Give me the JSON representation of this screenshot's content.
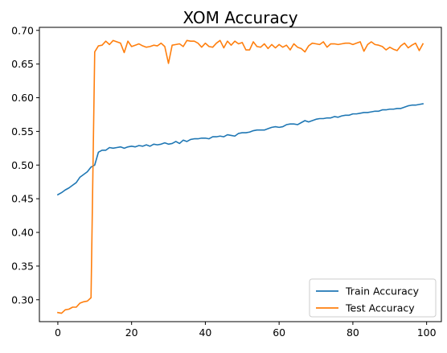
{
  "chart_data": {
    "type": "line",
    "title": "XOM Accuracy",
    "xlabel": "",
    "ylabel": "",
    "xlim": [
      -5,
      104
    ],
    "ylim": [
      0.2675,
      0.7045
    ],
    "xticks": [
      0,
      20,
      40,
      60,
      80,
      100
    ],
    "xtick_labels": [
      "0",
      "20",
      "40",
      "60",
      "80",
      "100"
    ],
    "yticks": [
      0.3,
      0.35,
      0.4,
      0.45,
      0.5,
      0.55,
      0.6,
      0.65,
      0.7
    ],
    "ytick_labels": [
      "0.30",
      "0.35",
      "0.40",
      "0.45",
      "0.50",
      "0.55",
      "0.60",
      "0.65",
      "0.70"
    ],
    "grid": false,
    "legend_position": "lower-right",
    "series": [
      {
        "name": "Train Accuracy",
        "color": "#1f77b4",
        "x": [
          0,
          1,
          2,
          3,
          4,
          5,
          6,
          7,
          8,
          9,
          10,
          11,
          12,
          13,
          14,
          15,
          16,
          17,
          18,
          19,
          20,
          21,
          22,
          23,
          24,
          25,
          26,
          27,
          28,
          29,
          30,
          31,
          32,
          33,
          34,
          35,
          36,
          37,
          38,
          39,
          40,
          41,
          42,
          43,
          44,
          45,
          46,
          47,
          48,
          49,
          50,
          51,
          52,
          53,
          54,
          55,
          56,
          57,
          58,
          59,
          60,
          61,
          62,
          63,
          64,
          65,
          66,
          67,
          68,
          69,
          70,
          71,
          72,
          73,
          74,
          75,
          76,
          77,
          78,
          79,
          80,
          81,
          82,
          83,
          84,
          85,
          86,
          87,
          88,
          89,
          90,
          91,
          92,
          93,
          94,
          95,
          96,
          97,
          98,
          99
        ],
        "values": [
          0.456,
          0.459,
          0.463,
          0.466,
          0.47,
          0.474,
          0.482,
          0.486,
          0.49,
          0.497,
          0.5,
          0.519,
          0.522,
          0.522,
          0.526,
          0.525,
          0.526,
          0.527,
          0.525,
          0.527,
          0.528,
          0.527,
          0.529,
          0.528,
          0.53,
          0.528,
          0.531,
          0.53,
          0.531,
          0.533,
          0.531,
          0.532,
          0.535,
          0.532,
          0.537,
          0.535,
          0.538,
          0.539,
          0.539,
          0.54,
          0.54,
          0.539,
          0.542,
          0.542,
          0.543,
          0.542,
          0.545,
          0.544,
          0.543,
          0.547,
          0.548,
          0.548,
          0.549,
          0.551,
          0.552,
          0.552,
          0.552,
          0.554,
          0.556,
          0.557,
          0.556,
          0.557,
          0.56,
          0.561,
          0.561,
          0.56,
          0.563,
          0.566,
          0.564,
          0.566,
          0.568,
          0.569,
          0.569,
          0.57,
          0.57,
          0.572,
          0.571,
          0.573,
          0.574,
          0.574,
          0.576,
          0.576,
          0.577,
          0.578,
          0.578,
          0.579,
          0.58,
          0.58,
          0.582,
          0.582,
          0.583,
          0.583,
          0.584,
          0.584,
          0.586,
          0.588,
          0.589,
          0.589,
          0.59,
          0.591
        ]
      },
      {
        "name": "Test Accuracy",
        "color": "#ff7f0e",
        "x": [
          0,
          1,
          2,
          3,
          4,
          5,
          6,
          7,
          8,
          9,
          10,
          11,
          12,
          13,
          14,
          15,
          16,
          17,
          18,
          19,
          20,
          21,
          22,
          23,
          24,
          25,
          26,
          27,
          28,
          29,
          30,
          31,
          32,
          33,
          34,
          35,
          36,
          37,
          38,
          39,
          40,
          41,
          42,
          43,
          44,
          45,
          46,
          47,
          48,
          49,
          50,
          51,
          52,
          53,
          54,
          55,
          56,
          57,
          58,
          59,
          60,
          61,
          62,
          63,
          64,
          65,
          66,
          67,
          68,
          69,
          70,
          71,
          72,
          73,
          74,
          75,
          76,
          77,
          78,
          79,
          80,
          81,
          82,
          83,
          84,
          85,
          86,
          87,
          88,
          89,
          90,
          91,
          92,
          93,
          94,
          95,
          96,
          97,
          98,
          99
        ],
        "values": [
          0.281,
          0.28,
          0.285,
          0.286,
          0.289,
          0.289,
          0.295,
          0.297,
          0.298,
          0.303,
          0.668,
          0.677,
          0.678,
          0.684,
          0.679,
          0.685,
          0.683,
          0.681,
          0.667,
          0.684,
          0.676,
          0.678,
          0.68,
          0.677,
          0.675,
          0.676,
          0.678,
          0.677,
          0.681,
          0.676,
          0.651,
          0.678,
          0.679,
          0.68,
          0.676,
          0.685,
          0.684,
          0.684,
          0.681,
          0.675,
          0.681,
          0.676,
          0.675,
          0.681,
          0.685,
          0.674,
          0.684,
          0.678,
          0.684,
          0.68,
          0.682,
          0.671,
          0.671,
          0.683,
          0.676,
          0.675,
          0.68,
          0.673,
          0.679,
          0.674,
          0.679,
          0.675,
          0.678,
          0.671,
          0.68,
          0.675,
          0.673,
          0.668,
          0.677,
          0.681,
          0.68,
          0.679,
          0.683,
          0.675,
          0.68,
          0.68,
          0.679,
          0.68,
          0.681,
          0.681,
          0.679,
          0.681,
          0.683,
          0.669,
          0.679,
          0.683,
          0.679,
          0.678,
          0.676,
          0.671,
          0.675,
          0.672,
          0.67,
          0.677,
          0.681,
          0.674,
          0.678,
          0.681,
          0.67,
          0.68
        ]
      }
    ]
  }
}
